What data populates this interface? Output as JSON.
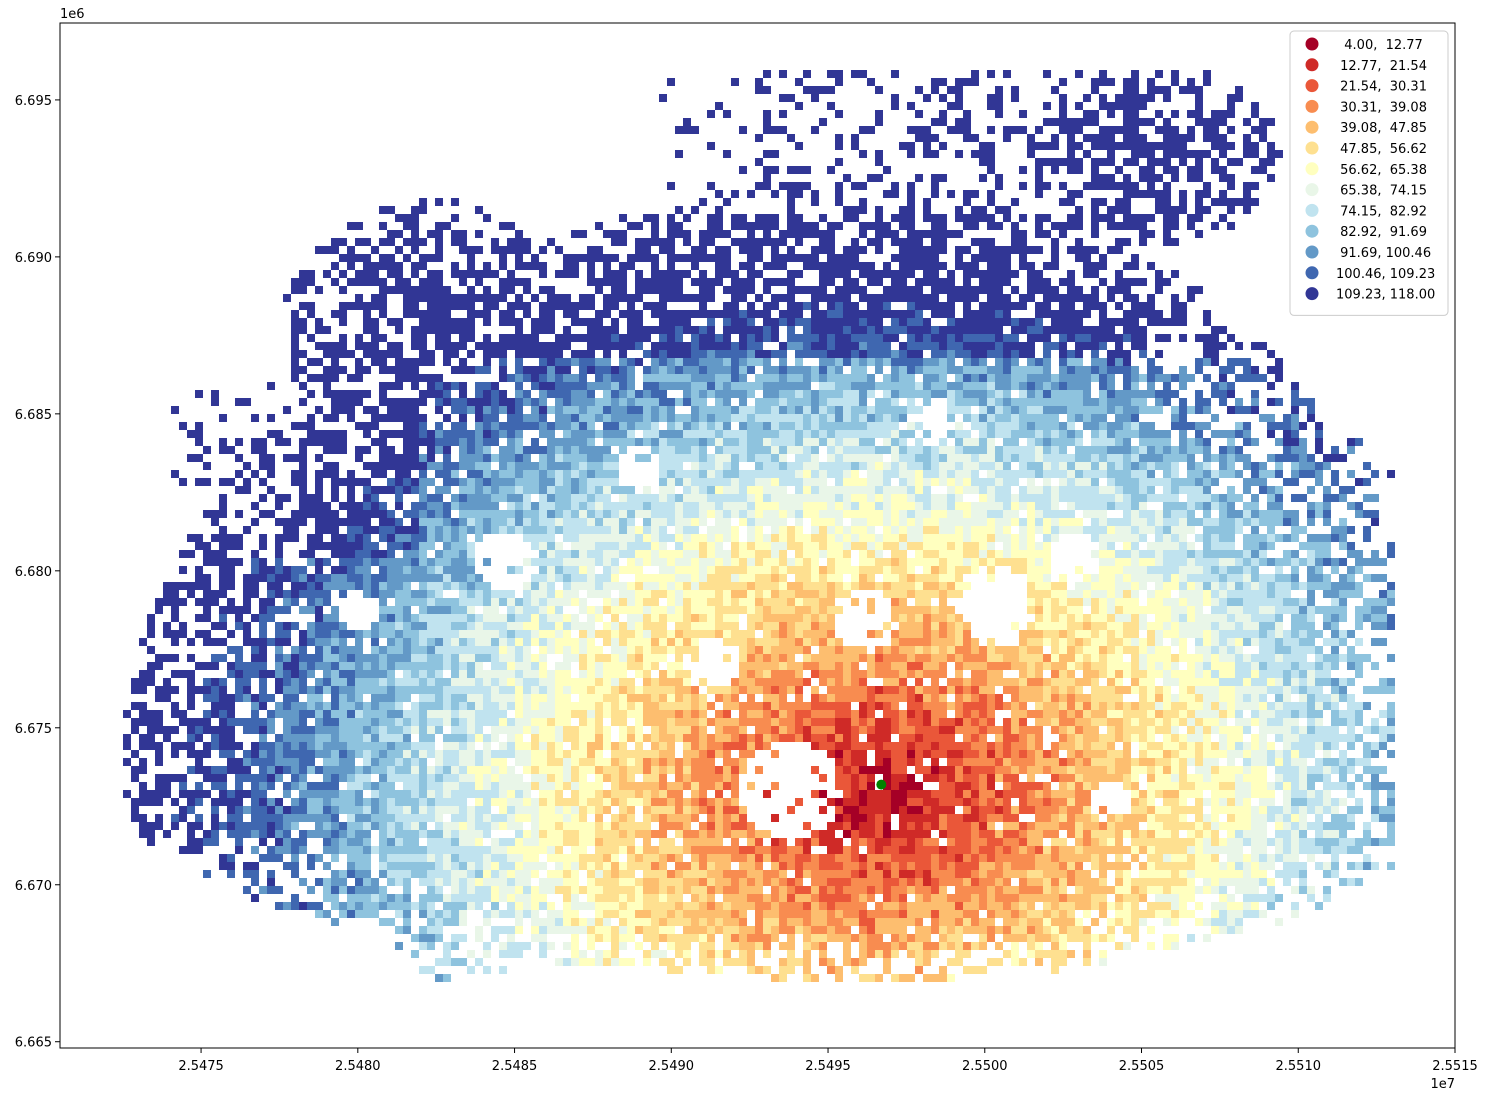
{
  "chart_data": {
    "type": "heatmap",
    "title": "",
    "xlabel": "",
    "ylabel": "",
    "x_offset_label": "1e7",
    "y_offset_label": "1e6",
    "xlim": [
      2.54705,
      2.5515
    ],
    "ylim": [
      6.6648,
      6.69745
    ],
    "x_ticks": [
      2.5475,
      2.548,
      2.5485,
      2.549,
      2.5495,
      2.55,
      2.5505,
      2.551,
      2.5515
    ],
    "x_tick_labels": [
      "2.5475",
      "2.5480",
      "2.5485",
      "2.5490",
      "2.5495",
      "2.5500",
      "2.5505",
      "2.5510",
      "2.5515"
    ],
    "y_ticks": [
      6.665,
      6.67,
      6.675,
      6.68,
      6.685,
      6.69,
      6.695
    ],
    "y_tick_labels": [
      "6.665",
      "6.670",
      "6.675",
      "6.680",
      "6.685",
      "6.690",
      "6.695"
    ],
    "grid": false,
    "colormap": "RdYlBu",
    "legend_position": "top-right",
    "classes": [
      {
        "label": "  4.00,  12.77",
        "color": "#a50026"
      },
      {
        "label": " 12.77,  21.54",
        "color": "#cf2a27"
      },
      {
        "label": " 21.54,  30.31",
        "color": "#ea5739"
      },
      {
        "label": " 30.31,  39.08",
        "color": "#f88c50"
      },
      {
        "label": " 39.08,  47.85",
        "color": "#fdbe6f"
      },
      {
        "label": " 47.85,  56.62",
        "color": "#fee090"
      },
      {
        "label": " 56.62,  65.38",
        "color": "#ffffbf"
      },
      {
        "label": " 65.38,  74.15",
        "color": "#e9f6e8"
      },
      {
        "label": " 74.15,  82.92",
        "color": "#c0e3ef"
      },
      {
        "label": " 82.92,  91.69",
        "color": "#8ec3de"
      },
      {
        "label": " 91.69, 100.46",
        "color": "#6399c7"
      },
      {
        "label": "100.46, 109.23",
        "color": "#3f67b0"
      },
      {
        "label": "109.23, 118.00",
        "color": "#313695"
      }
    ],
    "marker": {
      "x": 2.54967,
      "y": 6.67319,
      "color": "#008000"
    }
  }
}
